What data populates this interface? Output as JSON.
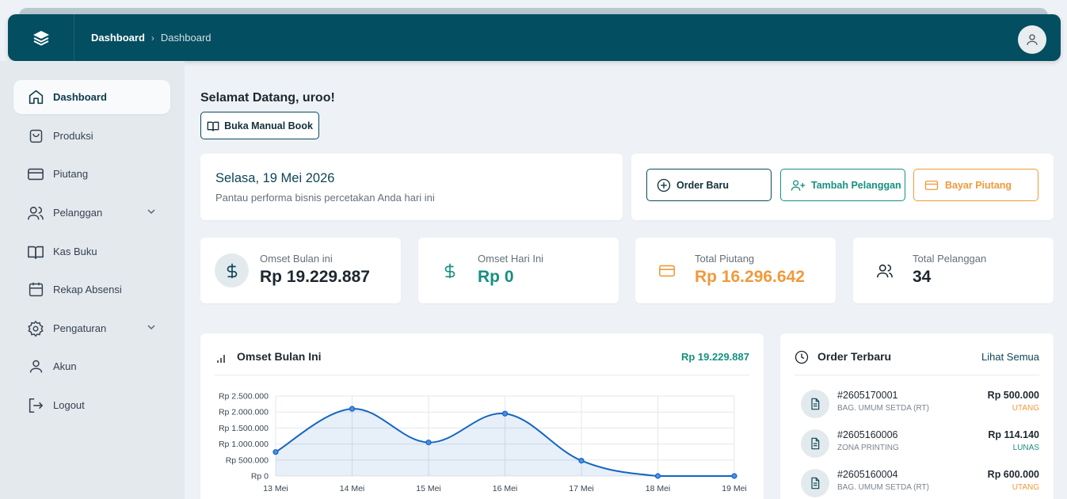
{
  "header": {
    "breadcrumb": [
      "Dashboard",
      "Dashboard"
    ]
  },
  "sidebar": {
    "items": [
      {
        "label": "Dashboard",
        "icon": "home-icon",
        "active": true
      },
      {
        "label": "Produksi",
        "icon": "shopping-bag-icon"
      },
      {
        "label": "Piutang",
        "icon": "credit-card-icon"
      },
      {
        "label": "Pelanggan",
        "icon": "users-icon",
        "expandable": true
      },
      {
        "label": "Kas Buku",
        "icon": "book-icon"
      },
      {
        "label": "Rekap Absensi",
        "icon": "calendar-icon"
      },
      {
        "label": "Pengaturan",
        "icon": "gear-icon",
        "expandable": true
      },
      {
        "label": "Akun",
        "icon": "user-icon"
      },
      {
        "label": "Logout",
        "icon": "logout-icon"
      }
    ]
  },
  "main": {
    "welcome": "Selamat Datang, uroo!",
    "manual_button": "Buka Manual Book",
    "date_card": {
      "date": "Selasa, 19 Mei 2026",
      "subtitle": "Pantau performa bisnis percetakan Anda hari ini"
    },
    "actions": {
      "order_baru": "Order Baru",
      "tambah_pelanggan": "Tambah Pelanggan",
      "bayar_piutang": "Bayar Piutang"
    },
    "stats": [
      {
        "label": "Omset Bulan ini",
        "value": "Rp 19.229.887",
        "color": "#1d2730"
      },
      {
        "label": "Omset Hari Ini",
        "value": "Rp 0",
        "color": "#16907f"
      },
      {
        "label": "Total Piutang",
        "value": "Rp 16.296.642",
        "color": "#f09a3b"
      },
      {
        "label": "Total Pelanggan",
        "value": "34",
        "color": "#1d2730"
      }
    ],
    "chart_card": {
      "title": "Omset Bulan Ini",
      "total": "Rp 19.229.887"
    },
    "orders_card": {
      "title": "Order Terbaru",
      "link": "Lihat Semua",
      "orders": [
        {
          "number": "#2605170001",
          "customer": "BAG. UMUM SETDA (RT)",
          "amount": "Rp 500.000",
          "status": "UTANG",
          "status_color": "#f09a3b"
        },
        {
          "number": "#2605160006",
          "customer": "ZONA PRINTING",
          "amount": "Rp 114.140",
          "status": "LUNAS",
          "status_color": "#16907f"
        },
        {
          "number": "#2605160004",
          "customer": "BAG. UMUM SETDA (RT)",
          "amount": "Rp 600.000",
          "status": "UTANG",
          "status_color": "#f09a3b"
        }
      ]
    }
  },
  "colors": {
    "header": "#034e60",
    "accent_teal": "#16907f",
    "accent_orange": "#f09a3b",
    "line": "#1565c0"
  },
  "chart_data": {
    "type": "area",
    "categories": [
      "13 Mei",
      "14 Mei",
      "15 Mei",
      "16 Mei",
      "17 Mei",
      "18 Mei",
      "19 Mei"
    ],
    "values": [
      750000,
      2100000,
      1050000,
      1950000,
      480000,
      0,
      0
    ],
    "y_ticks": [
      "Rp 0",
      "Rp 500.000",
      "Rp 1.000.000",
      "Rp 1.500.000",
      "Rp 2.000.000",
      "Rp 2.500.000"
    ],
    "ylim": [
      0,
      2500000
    ],
    "grid": true,
    "legend": "none"
  }
}
